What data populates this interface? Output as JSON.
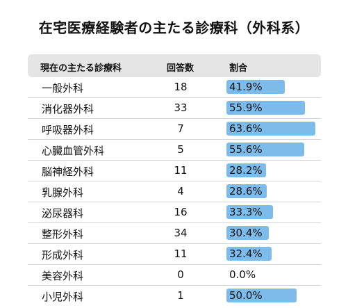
{
  "title": "在宅医療経験者の主たる診療科（外科系）",
  "chart_data": {
    "type": "table",
    "columns": [
      "現在の主たる診療科",
      "回答数",
      "割合"
    ],
    "rows": [
      {
        "dept": "一般外科",
        "count": "18",
        "ratio_label": "41.9%",
        "ratio": 41.9
      },
      {
        "dept": "消化器外科",
        "count": "33",
        "ratio_label": "55.9%",
        "ratio": 55.9
      },
      {
        "dept": "呼吸器外科",
        "count": "7",
        "ratio_label": "63.6%",
        "ratio": 63.6
      },
      {
        "dept": "心臓血管外科",
        "count": "5",
        "ratio_label": "55.6%",
        "ratio": 55.6
      },
      {
        "dept": "脳神経外科",
        "count": "11",
        "ratio_label": "28.2%",
        "ratio": 28.2
      },
      {
        "dept": "乳腺外科",
        "count": "4",
        "ratio_label": "28.6%",
        "ratio": 28.6
      },
      {
        "dept": "泌尿器科",
        "count": "16",
        "ratio_label": "33.3%",
        "ratio": 33.3
      },
      {
        "dept": "整形外科",
        "count": "34",
        "ratio_label": "30.4%",
        "ratio": 30.4
      },
      {
        "dept": "形成外科",
        "count": "11",
        "ratio_label": "32.4%",
        "ratio": 32.4
      },
      {
        "dept": "美容外科",
        "count": "0",
        "ratio_label": "0.0%",
        "ratio": 0
      },
      {
        "dept": "小児外科",
        "count": "1",
        "ratio_label": "50.0%",
        "ratio": 50
      }
    ],
    "bar_color": "#7dbbea"
  }
}
